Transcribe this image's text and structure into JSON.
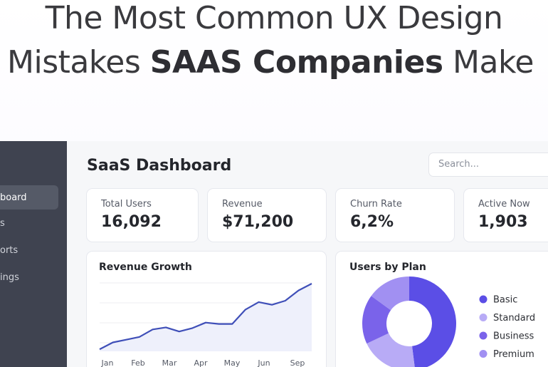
{
  "headline": {
    "line1": "The Most Common UX Design",
    "line2_start": "Mistakes",
    "line2_bold": "SAAS Companies",
    "line2_end": "Make"
  },
  "sidebar": {
    "items": [
      "board",
      "s",
      "orts",
      "ings"
    ]
  },
  "dashboard": {
    "title": "SaaS Dashboard",
    "search_placeholder": "Search...",
    "stats": [
      {
        "label": "Total Users",
        "value": "16,092"
      },
      {
        "label": "Revenue",
        "value": "$71,200"
      },
      {
        "label": "Churn Rate",
        "value": "6,2%"
      },
      {
        "label": "Active Now",
        "value": "1,903"
      }
    ]
  },
  "revenue_chart": {
    "title": "Revenue Growth",
    "labels": [
      "Jan",
      "Feb",
      "Mar",
      "Apr",
      "May",
      "Jun",
      "Sep"
    ],
    "values": [
      3,
      13,
      17,
      21,
      32,
      35,
      29,
      34,
      42,
      40,
      40,
      61,
      72,
      68,
      74,
      89,
      99
    ],
    "ylim": [
      0,
      100
    ],
    "color": "#3f4fb8"
  },
  "plan_chart": {
    "title": "Users by Plan",
    "series": [
      {
        "name": "Basic",
        "value": 48,
        "color": "#5b4ee6"
      },
      {
        "name": "Standard",
        "value": 20,
        "color": "#b8abf6"
      },
      {
        "name": "Business",
        "value": 17,
        "color": "#7a63ea"
      },
      {
        "name": "Premium",
        "value": 15,
        "color": "#a190f2"
      }
    ]
  }
}
